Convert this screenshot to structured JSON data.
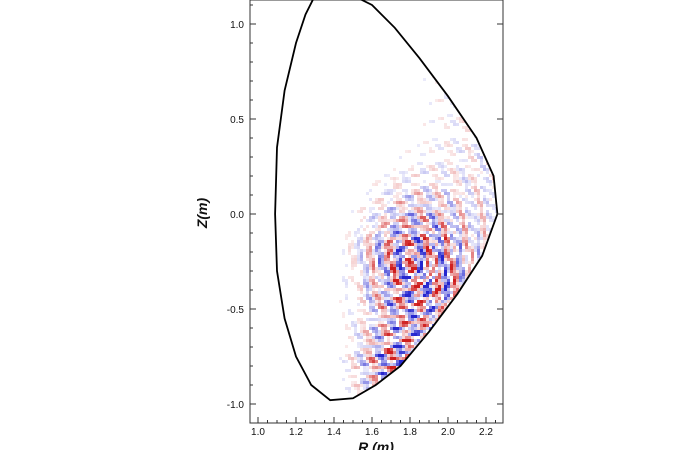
{
  "chart_data": {
    "type": "heatmap",
    "title": "",
    "xlabel": "R (m)",
    "ylabel": "Z(m)",
    "xlim": [
      0.95,
      2.3
    ],
    "ylim": [
      -1.1,
      1.1
    ],
    "x_ticks": [
      "1.0",
      "1.2",
      "1.4",
      "1.6",
      "1.8",
      "2.0",
      "2.2"
    ],
    "y_ticks": [
      "1.0",
      "0.5",
      "0.0",
      "-0.5",
      "-1.0"
    ],
    "x_tick_values": [
      1.0,
      1.2,
      1.4,
      1.6,
      1.8,
      2.0,
      2.2
    ],
    "y_tick_values": [
      1.0,
      0.5,
      0.0,
      -0.5,
      -1.0
    ],
    "colormap": {
      "positive": "#cc1111",
      "negative": "#1a1acc",
      "zero": "#ffffff"
    },
    "boundary_outline": [
      [
        1.3,
        1.15
      ],
      [
        1.25,
        1.05
      ],
      [
        1.2,
        0.9
      ],
      [
        1.14,
        0.65
      ],
      [
        1.1,
        0.35
      ],
      [
        1.09,
        0.0
      ],
      [
        1.1,
        -0.3
      ],
      [
        1.14,
        -0.55
      ],
      [
        1.2,
        -0.75
      ],
      [
        1.28,
        -0.9
      ],
      [
        1.38,
        -0.98
      ],
      [
        1.5,
        -0.97
      ],
      [
        1.62,
        -0.9
      ],
      [
        1.75,
        -0.8
      ],
      [
        1.9,
        -0.62
      ],
      [
        2.05,
        -0.42
      ],
      [
        2.18,
        -0.22
      ],
      [
        2.26,
        0.0
      ],
      [
        2.24,
        0.2
      ],
      [
        2.15,
        0.4
      ],
      [
        2.0,
        0.62
      ],
      [
        1.85,
        0.82
      ],
      [
        1.72,
        0.98
      ],
      [
        1.6,
        1.1
      ],
      [
        1.5,
        1.15
      ],
      [
        1.4,
        1.18
      ],
      [
        1.3,
        1.15
      ]
    ],
    "grid": false
  }
}
